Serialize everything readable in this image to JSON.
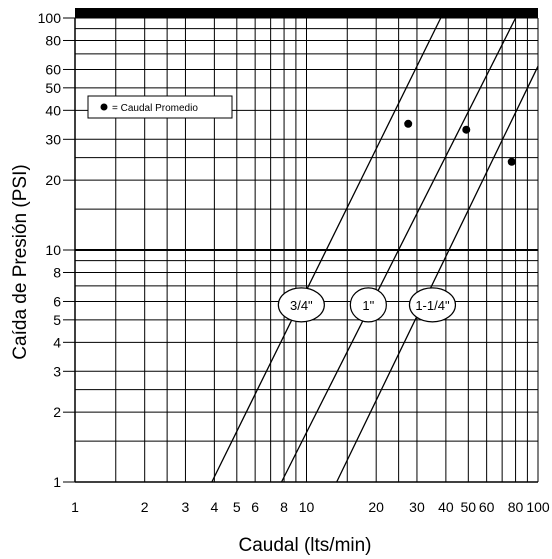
{
  "chart_data": {
    "type": "line",
    "x_scale": "log",
    "y_scale": "log",
    "xlim": [
      1,
      100
    ],
    "ylim": [
      1,
      100
    ],
    "xlabel": "Caudal (lts/min)",
    "ylabel": "Caída de Presión (PSI)",
    "x_ticks": [
      {
        "value": 1,
        "label": "1"
      },
      {
        "value": 2,
        "label": "2"
      },
      {
        "value": 3,
        "label": "3"
      },
      {
        "value": 4,
        "label": "4"
      },
      {
        "value": 5,
        "label": "5"
      },
      {
        "value": 6,
        "label": "6"
      },
      {
        "value": 8,
        "label": "8"
      },
      {
        "value": 10,
        "label": "10"
      },
      {
        "value": 20,
        "label": "20"
      },
      {
        "value": 30,
        "label": "30"
      },
      {
        "value": 40,
        "label": "40"
      },
      {
        "value": 50,
        "label": "50"
      },
      {
        "value": 60,
        "label": "60"
      },
      {
        "value": 80,
        "label": "80"
      },
      {
        "value": 100,
        "label": "100"
      }
    ],
    "y_ticks": [
      {
        "value": 1,
        "label": "1"
      },
      {
        "value": 2,
        "label": "2"
      },
      {
        "value": 3,
        "label": "3"
      },
      {
        "value": 4,
        "label": "4"
      },
      {
        "value": 5,
        "label": "5"
      },
      {
        "value": 6,
        "label": "6"
      },
      {
        "value": 8,
        "label": "8"
      },
      {
        "value": 10,
        "label": "10"
      },
      {
        "value": 20,
        "label": "20"
      },
      {
        "value": 30,
        "label": "30"
      },
      {
        "value": 40,
        "label": "40"
      },
      {
        "value": 50,
        "label": "50"
      },
      {
        "value": 60,
        "label": "60"
      },
      {
        "value": 80,
        "label": "80"
      },
      {
        "value": 100,
        "label": "100"
      }
    ],
    "x_grid": [
      1.5,
      2,
      2.5,
      3,
      4,
      5,
      6,
      7,
      8,
      9,
      10,
      15,
      20,
      25,
      30,
      40,
      50,
      60,
      70,
      80,
      90,
      100
    ],
    "y_grid": [
      1,
      1.5,
      2,
      2.5,
      3,
      4,
      5,
      6,
      7,
      8,
      9,
      10,
      15,
      20,
      25,
      30,
      40,
      50,
      60,
      70,
      80,
      90,
      100
    ],
    "grid": true,
    "legend": {
      "marker": "dot",
      "text": "= Caudal Promedio",
      "position": "upper-left"
    },
    "series": [
      {
        "name": "3/4\"",
        "x": [
          3.9,
          38
        ],
        "y": [
          1,
          100
        ],
        "avg": {
          "x": 27.5,
          "y": 35
        },
        "label_at": {
          "x": 9.5,
          "y": 5.8
        }
      },
      {
        "name": "1\"",
        "x": [
          7.8,
          80
        ],
        "y": [
          1,
          100
        ],
        "avg": {
          "x": 49,
          "y": 33
        },
        "label_at": {
          "x": 18.5,
          "y": 5.8
        }
      },
      {
        "name": "1-1/4\"",
        "x": [
          13.5,
          100
        ],
        "y": [
          1,
          62
        ],
        "avg": {
          "x": 77,
          "y": 24
        },
        "label_at": {
          "x": 35,
          "y": 5.8
        }
      }
    ]
  }
}
